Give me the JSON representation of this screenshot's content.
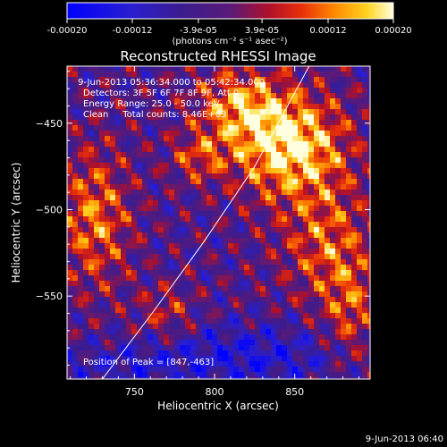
{
  "colorbar": {
    "tick_labels": [
      "-0.00020",
      "-0.00012",
      "-3.9e-05",
      "3.9e-05",
      "0.00012",
      "0.00020"
    ],
    "tick_values": [
      -0.0002,
      -0.00012,
      -3.9e-05,
      3.9e-05,
      0.00012,
      0.0002
    ],
    "range": [
      -0.0002,
      0.0002
    ],
    "units": "(photons cm⁻² s⁻¹ asec⁻²)"
  },
  "chart_data": {
    "type": "heatmap",
    "title": "Reconstructed RHESSI Image",
    "xlabel": "Heliocentric X (arcsec)",
    "ylabel": "Heliocentric Y (arcsec)",
    "xlim": [
      708,
      897
    ],
    "ylim": [
      -598,
      -417
    ],
    "x_ticks": [
      750,
      800,
      850
    ],
    "y_ticks": [
      -450,
      -500,
      -550
    ],
    "x_tick_labels": [
      "750",
      "800",
      "850"
    ],
    "y_tick_labels": [
      "−450",
      "−500",
      "−550"
    ],
    "limb_curve": {
      "x": [
        730,
        761,
        793,
        825,
        859
      ],
      "y": [
        -598,
        -560,
        -519,
        -475,
        -417
      ]
    },
    "annotations": [
      "9-Jun-2013 05:36:34.000 to 05:42:34.000",
      "Detectors: 3F 5F 6F 7F 8F 9F, Att 0",
      "Energy Range: 25.0 - 50.0 keV",
      "Clean     Total counts: 8.46E+03"
    ],
    "peak_label": "Position of Peak = [847,-463]",
    "peak": [
      847,
      -463
    ],
    "grid": false,
    "colormap": "blue-purple-red-yellow-white"
  },
  "footer": {
    "timestamp": "9-Jun-2013 06:40"
  }
}
